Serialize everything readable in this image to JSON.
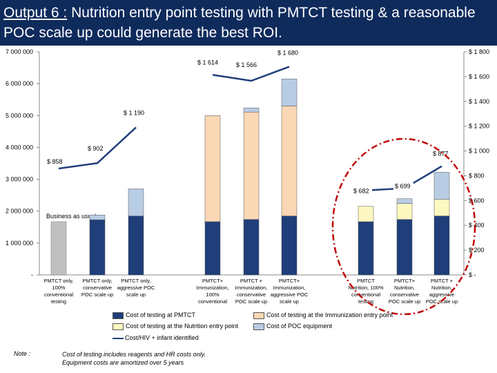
{
  "title": {
    "prefix": "Output 6 :",
    "text": " Nutrition entry point testing with PMTCT testing & a reasonable POC scale up could generate the best ROI."
  },
  "chart_data": {
    "type": "bar",
    "stacked": true,
    "categories": [
      "PMTCT only, 100% conventional testing",
      "PMTCT only, conservative POC scale up",
      "PMTCT only, aggressive POC scale up",
      "PMTCT+ Immunization, 100% conventional",
      "PMTCT + Immunization, conservative POC scale up",
      "PMTCT+ Immunization, aggressive POC scale up",
      "PMTCT Nutrition, 100% conventional testing",
      "PMTCT+ Nutrition, conservative POC scale up",
      "PMTCT + Nutrition, aggressive POC scale up"
    ],
    "category_lines": [
      [
        "PMTCT only,",
        "100%",
        "conventional",
        "testing"
      ],
      [
        "PMTCT only,",
        "conservative",
        "POC scale up"
      ],
      [
        "PMTCT only,",
        "aggressive POC",
        "scale up"
      ],
      [
        "PMTCT+",
        "Immunization,",
        "100%",
        "conventional"
      ],
      [
        "PMTCT +",
        "Immunization,",
        "conservative",
        "POC scale up"
      ],
      [
        "PMTCT+",
        "Immunization,",
        "aggressive POC",
        "scale up"
      ],
      [
        "PMTCT",
        "Nutrition, 100%",
        "conventional",
        "testing"
      ],
      [
        "PMTCT+",
        "Nutrition,",
        "conservative",
        "POC scale up"
      ],
      [
        "PMTCT +",
        "Nutrition,",
        "aggressive",
        "POC scale up"
      ]
    ],
    "series": [
      {
        "name": "Cost of testing at PMTCT",
        "color": "#1f3e7a",
        "values": [
          null,
          1730000,
          1850000,
          1670000,
          1740000,
          1850000,
          1670000,
          1740000,
          1850000
        ]
      },
      {
        "name": "Cost of testing at the Immunization entry point",
        "color": "#fad7b5",
        "values": [
          null,
          0,
          0,
          3330000,
          3370000,
          3450000,
          0,
          0,
          0
        ]
      },
      {
        "name": "Cost of testing at the Nutrition entry point",
        "color": "#fdf7c0",
        "values": [
          null,
          0,
          0,
          0,
          0,
          0,
          480000,
          500000,
          520000
        ]
      },
      {
        "name": "Cost of POC equipment",
        "color": "#b8cce4",
        "values": [
          null,
          150000,
          850000,
          0,
          130000,
          850000,
          0,
          150000,
          850000
        ]
      }
    ],
    "business_as_usual": {
      "label": "Business as usual",
      "value": 1670000,
      "color": "#c0c0c0"
    },
    "line": {
      "name": "Cost/HIV + infant identified",
      "color": "#1f3e7a",
      "groups": [
        [
          0,
          1,
          2
        ],
        [
          3,
          4,
          5
        ],
        [
          6,
          7,
          8
        ]
      ],
      "values": [
        858,
        902,
        1190,
        1614,
        1566,
        1680,
        682,
        699,
        877
      ],
      "labels": [
        "$ 858",
        "$ 902",
        "$ 1 190",
        "$ 1 614",
        "$ 1 566",
        "$ 1 680",
        "$ 682",
        "$ 699",
        "$ 877"
      ]
    },
    "y_left": {
      "min": 0,
      "max": 7000000,
      "ticks": [
        "-",
        "1 000 000",
        "2 000 000",
        "3 000 000",
        "4 000 000",
        "5 000 000",
        "6 000 000",
        "7 000 000"
      ]
    },
    "y_right": {
      "min": 0,
      "max": 1800,
      "ticks": [
        "$ -",
        "$ 200",
        "$ 400",
        "$ 600",
        "$ 800",
        "$ 1 000",
        "$ 1 200",
        "$ 1 400",
        "$ 1 600",
        "$ 1 800"
      ]
    },
    "highlight_color": "#c00000"
  },
  "legend": [
    {
      "label": "Cost of testing at PMTCT",
      "kind": "box",
      "color": "#1f3e7a"
    },
    {
      "label": "Cost of testing at the Immunization entry point",
      "kind": "box",
      "color": "#fad7b5"
    },
    {
      "label": "Cost of testing at the Nutrition entry point",
      "kind": "box",
      "color": "#fdf7c0"
    },
    {
      "label": "Cost of POC equipment",
      "kind": "box",
      "color": "#b8cce4"
    },
    {
      "label": "Cost/HIV + infant identified",
      "kind": "line",
      "color": "#1f3e7a"
    }
  ],
  "note": {
    "label": "Note :",
    "lines": [
      "Cost of testing includes reagents and HR costs only.",
      "Equipment costs are amortized over 5 years"
    ]
  }
}
